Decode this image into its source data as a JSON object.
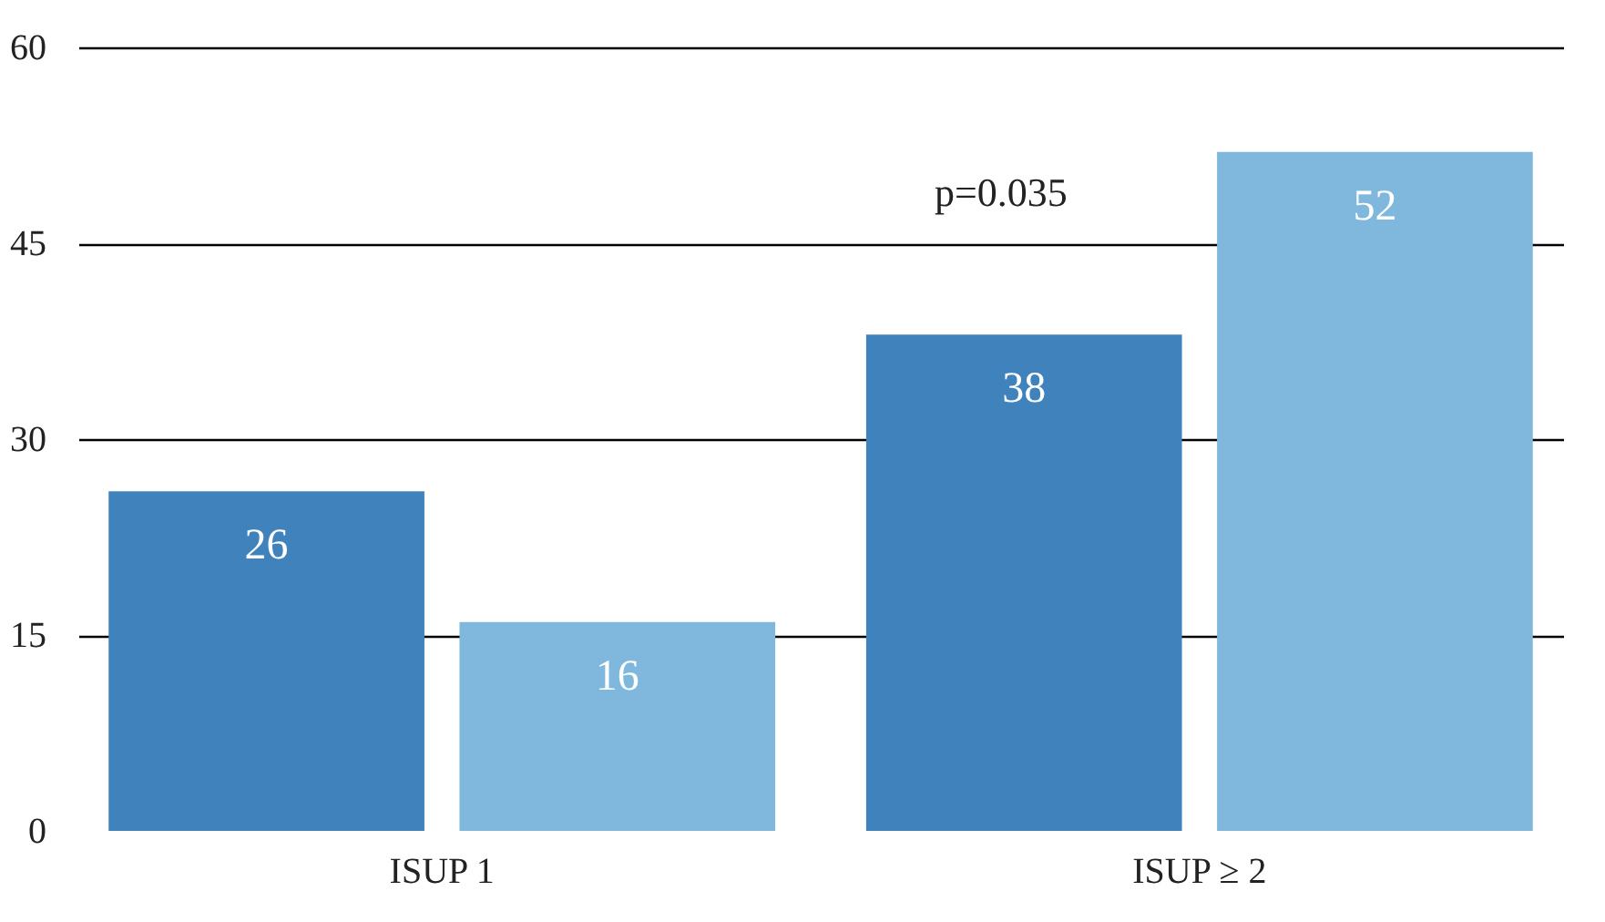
{
  "chart_data": {
    "type": "bar",
    "categories": [
      "ISUP 1",
      "ISUP ≥ 2"
    ],
    "series": [
      {
        "color": "#3f82bc",
        "values": [
          26,
          38
        ]
      },
      {
        "color": "#7fb8dc",
        "values": [
          16,
          52
        ]
      }
    ],
    "ylim": [
      0,
      60
    ],
    "yticks": [
      0,
      15,
      30,
      45,
      60
    ],
    "grid": "y",
    "data_labels": true,
    "annotations": [
      "p=0.035"
    ]
  }
}
